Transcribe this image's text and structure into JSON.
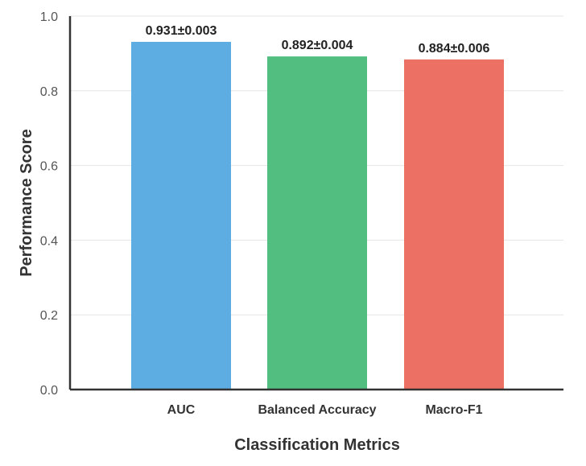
{
  "chart_data": {
    "type": "bar",
    "title": "",
    "xlabel": "Classification Metrics",
    "ylabel": "Performance Score",
    "ylim": [
      0,
      1.0
    ],
    "yticks": [
      "0.0",
      "0.2",
      "0.4",
      "0.6",
      "0.8",
      "1.0"
    ],
    "grid": true,
    "categories": [
      "AUC",
      "Balanced Accuracy",
      "Macro-F1"
    ],
    "values": [
      0.931,
      0.892,
      0.884
    ],
    "data_labels": [
      "0.931±0.003",
      "0.892±0.004",
      "0.884±0.006"
    ],
    "colors": [
      "#5DADE2",
      "#52BE80",
      "#EC7063"
    ]
  }
}
